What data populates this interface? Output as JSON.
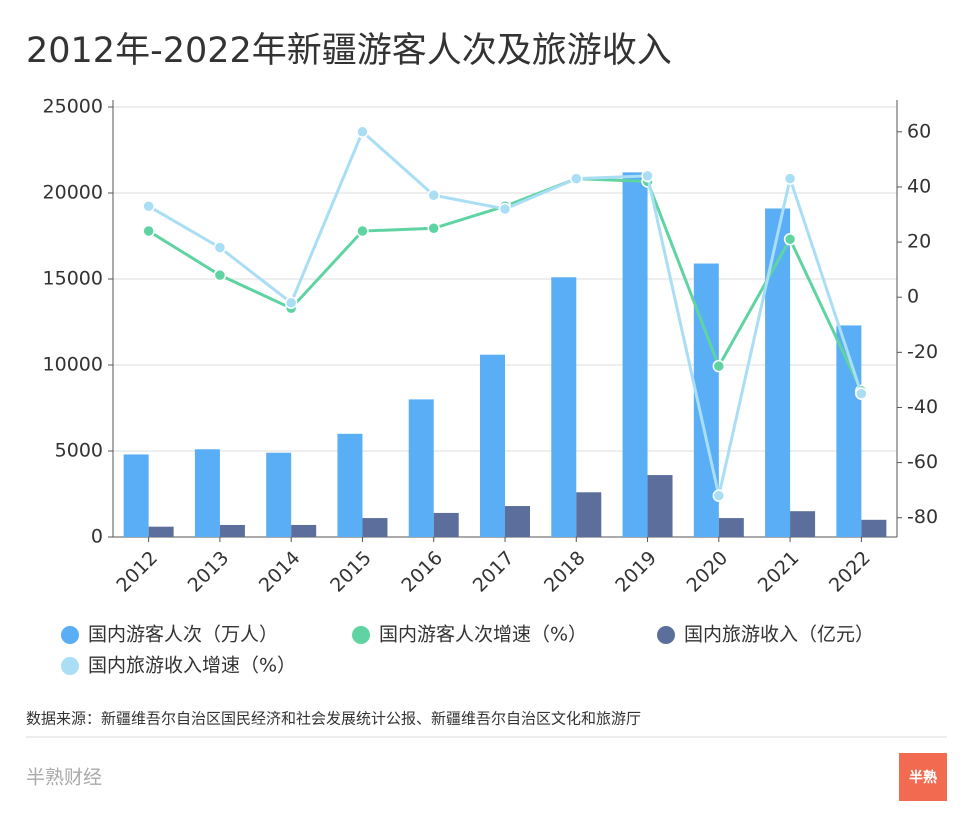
{
  "chart_data": {
    "type": "bar-line",
    "title": "2012年-2022年新疆游客人次及旅游收入",
    "categories": [
      "2012",
      "2013",
      "2014",
      "2015",
      "2016",
      "2017",
      "2018",
      "2019",
      "2020",
      "2021",
      "2022"
    ],
    "series": [
      {
        "name": "国内游客人次（万人）",
        "type": "bar",
        "color": "#5aaef5",
        "values": [
          4800,
          5100,
          4900,
          6000,
          8000,
          10600,
          15100,
          21200,
          15900,
          19100,
          12300
        ]
      },
      {
        "name": "国内游客人次增速（%）",
        "type": "line",
        "axis": "y2",
        "color": "#5fd4a2",
        "values": [
          24,
          8,
          -4,
          24,
          25,
          33,
          43,
          42,
          -25,
          21,
          -34
        ]
      },
      {
        "name": "国内旅游收入（亿元）",
        "type": "bar",
        "color": "#5b6e9c",
        "values": [
          600,
          700,
          700,
          1100,
          1400,
          1800,
          2600,
          3600,
          1100,
          1500,
          1000
        ]
      },
      {
        "name": "国内旅游收入增速（%）",
        "type": "line",
        "axis": "y2",
        "color": "#a9def5",
        "values": [
          33,
          18,
          -2,
          60,
          37,
          32,
          43,
          44,
          -72,
          43,
          -35
        ]
      }
    ],
    "ylim": [
      0,
      25000
    ],
    "yticks": [
      0,
      5000,
      10000,
      15000,
      20000,
      25000
    ],
    "y2lim": [
      -87,
      69
    ],
    "y2ticks": [
      -80,
      -60,
      -40,
      -20,
      0,
      20,
      40,
      60
    ],
    "grid": true
  },
  "source": "数据来源：新疆维吾尔自治区国民经济和社会发展统计公报、新疆维吾尔自治区文化和旅游厅",
  "brand": "半熟财经",
  "logo": "半熟"
}
